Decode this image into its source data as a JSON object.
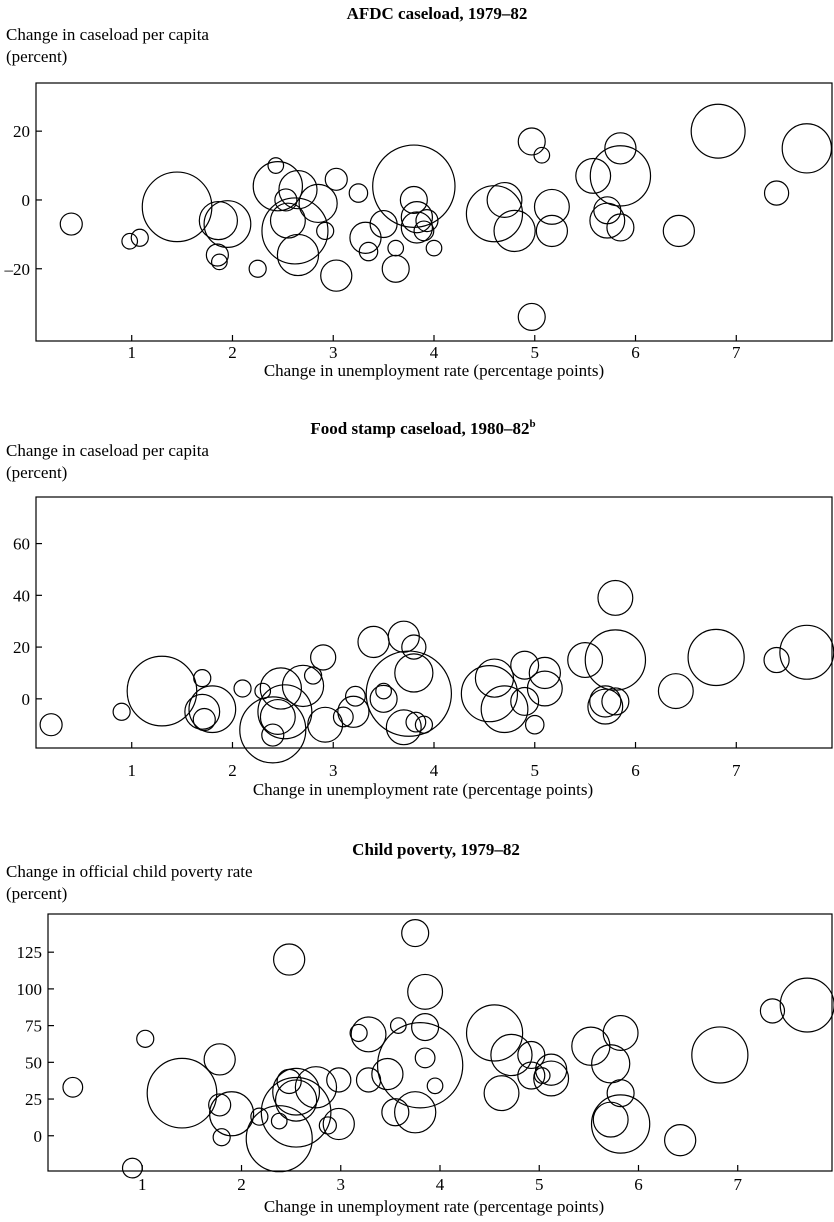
{
  "chart_data": [
    {
      "type": "scatter",
      "title": "AFDC caseload, 1979–82",
      "title_sup": "",
      "ylabel_line1": "Change in caseload per capita",
      "ylabel_line2": "(percent)",
      "xlabel": "Change in unemployment rate (percentage points)",
      "xlim": [
        0.05,
        7.95
      ],
      "ylim": [
        -41,
        34
      ],
      "xticks": [
        "1",
        "2",
        "3",
        "4",
        "5",
        "6",
        "7"
      ],
      "yticks": [
        "20",
        "0",
        "–20"
      ],
      "ytick_values": [
        20,
        0,
        -20
      ],
      "size_encoding": "bubble area",
      "points": [
        {
          "x": 0.4,
          "y": -7,
          "s": 1
        },
        {
          "x": 0.98,
          "y": -12,
          "s": 0.5
        },
        {
          "x": 1.08,
          "y": -11,
          "s": 0.6
        },
        {
          "x": 1.45,
          "y": -2,
          "s": 10
        },
        {
          "x": 1.86,
          "y": -6,
          "s": 3
        },
        {
          "x": 1.85,
          "y": -16,
          "s": 1
        },
        {
          "x": 1.87,
          "y": -18,
          "s": 0.5
        },
        {
          "x": 1.95,
          "y": -7,
          "s": 4.5
        },
        {
          "x": 2.25,
          "y": -20,
          "s": 0.6
        },
        {
          "x": 2.43,
          "y": 10,
          "s": 0.5
        },
        {
          "x": 2.45,
          "y": 4,
          "s": 5
        },
        {
          "x": 2.53,
          "y": 0,
          "s": 1
        },
        {
          "x": 2.55,
          "y": -6,
          "s": 2.5
        },
        {
          "x": 2.62,
          "y": -9,
          "s": 9
        },
        {
          "x": 2.65,
          "y": 3,
          "s": 3
        },
        {
          "x": 2.65,
          "y": -16,
          "s": 3.5
        },
        {
          "x": 2.85,
          "y": -1,
          "s": 3
        },
        {
          "x": 2.92,
          "y": -9,
          "s": 0.6
        },
        {
          "x": 3.03,
          "y": 6,
          "s": 1
        },
        {
          "x": 3.03,
          "y": -22,
          "s": 2
        },
        {
          "x": 3.25,
          "y": 2,
          "s": 0.7
        },
        {
          "x": 3.32,
          "y": -11,
          "s": 2
        },
        {
          "x": 3.35,
          "y": -15,
          "s": 0.7
        },
        {
          "x": 3.5,
          "y": -7,
          "s": 1.5
        },
        {
          "x": 3.62,
          "y": -20,
          "s": 1.5
        },
        {
          "x": 3.62,
          "y": -14,
          "s": 0.5
        },
        {
          "x": 3.8,
          "y": 4,
          "s": 14
        },
        {
          "x": 3.8,
          "y": 0,
          "s": 1.5
        },
        {
          "x": 3.83,
          "y": -5,
          "s": 2
        },
        {
          "x": 3.83,
          "y": -8,
          "s": 2
        },
        {
          "x": 3.9,
          "y": -9,
          "s": 0.8
        },
        {
          "x": 3.93,
          "y": -6,
          "s": 1
        },
        {
          "x": 4.0,
          "y": -14,
          "s": 0.5
        },
        {
          "x": 4.6,
          "y": -4,
          "s": 6.5
        },
        {
          "x": 4.7,
          "y": 0,
          "s": 2.5
        },
        {
          "x": 4.8,
          "y": -9,
          "s": 3.5
        },
        {
          "x": 4.97,
          "y": 17,
          "s": 1.5
        },
        {
          "x": 5.07,
          "y": 13,
          "s": 0.5
        },
        {
          "x": 5.17,
          "y": -2,
          "s": 2.5
        },
        {
          "x": 5.17,
          "y": -9,
          "s": 2
        },
        {
          "x": 4.97,
          "y": -34,
          "s": 1.5
        },
        {
          "x": 5.58,
          "y": 7,
          "s": 2.5
        },
        {
          "x": 5.72,
          "y": -3,
          "s": 1.5
        },
        {
          "x": 5.72,
          "y": -6,
          "s": 2.5
        },
        {
          "x": 5.85,
          "y": 15,
          "s": 2
        },
        {
          "x": 5.85,
          "y": -8,
          "s": 1.5
        },
        {
          "x": 5.85,
          "y": 7,
          "s": 7.5
        },
        {
          "x": 6.43,
          "y": -9,
          "s": 2
        },
        {
          "x": 6.82,
          "y": 20,
          "s": 6
        },
        {
          "x": 7.4,
          "y": 2,
          "s": 1.2
        },
        {
          "x": 7.7,
          "y": 15,
          "s": 5
        }
      ]
    },
    {
      "type": "scatter",
      "title": "Food stamp caseload, 1980–82",
      "title_sup": "b",
      "ylabel_line1": "Change in caseload per capita",
      "ylabel_line2": "(percent)",
      "xlabel": "Change in unemployment rate (percentage points)",
      "xlim": [
        0.05,
        7.95
      ],
      "ylim": [
        -19,
        78
      ],
      "xticks": [
        "1",
        "2",
        "3",
        "4",
        "5",
        "6",
        "7"
      ],
      "yticks": [
        "60",
        "40",
        "20",
        "0"
      ],
      "ytick_values": [
        60,
        40,
        20,
        0
      ],
      "size_encoding": "bubble area",
      "points": [
        {
          "x": 0.2,
          "y": -10,
          "s": 1
        },
        {
          "x": 0.9,
          "y": -5,
          "s": 0.6
        },
        {
          "x": 1.3,
          "y": 3,
          "s": 10
        },
        {
          "x": 1.7,
          "y": 8,
          "s": 0.6
        },
        {
          "x": 1.7,
          "y": -5,
          "s": 2.5
        },
        {
          "x": 1.72,
          "y": -8,
          "s": 1
        },
        {
          "x": 1.8,
          "y": -4,
          "s": 4.5
        },
        {
          "x": 2.1,
          "y": 4,
          "s": 0.6
        },
        {
          "x": 2.3,
          "y": 3,
          "s": 0.5
        },
        {
          "x": 2.4,
          "y": -12,
          "s": 9
        },
        {
          "x": 2.4,
          "y": -14,
          "s": 1
        },
        {
          "x": 2.45,
          "y": -7,
          "s": 2.5
        },
        {
          "x": 2.48,
          "y": 4,
          "s": 3.5
        },
        {
          "x": 2.52,
          "y": -5,
          "s": 6
        },
        {
          "x": 2.7,
          "y": 5,
          "s": 3.5
        },
        {
          "x": 2.8,
          "y": 9,
          "s": 0.6
        },
        {
          "x": 2.9,
          "y": 16,
          "s": 1.3
        },
        {
          "x": 2.92,
          "y": -10,
          "s": 2.5
        },
        {
          "x": 3.1,
          "y": -7,
          "s": 0.8
        },
        {
          "x": 3.2,
          "y": -5,
          "s": 2
        },
        {
          "x": 3.22,
          "y": 1,
          "s": 0.8
        },
        {
          "x": 3.4,
          "y": 22,
          "s": 2
        },
        {
          "x": 3.5,
          "y": 0,
          "s": 1.5
        },
        {
          "x": 3.5,
          "y": 3,
          "s": 0.5
        },
        {
          "x": 3.7,
          "y": 24,
          "s": 2
        },
        {
          "x": 3.7,
          "y": -11,
          "s": 2.5
        },
        {
          "x": 3.75,
          "y": 2,
          "s": 15
        },
        {
          "x": 3.8,
          "y": 20,
          "s": 1.2
        },
        {
          "x": 3.8,
          "y": 10,
          "s": 3
        },
        {
          "x": 3.82,
          "y": -9,
          "s": 0.8
        },
        {
          "x": 3.9,
          "y": -10,
          "s": 0.6
        },
        {
          "x": 4.55,
          "y": 2,
          "s": 6.5
        },
        {
          "x": 4.6,
          "y": 8,
          "s": 3
        },
        {
          "x": 4.7,
          "y": -4,
          "s": 4.5
        },
        {
          "x": 4.9,
          "y": 13,
          "s": 1.6
        },
        {
          "x": 4.9,
          "y": -1,
          "s": 1.6
        },
        {
          "x": 5.0,
          "y": -10,
          "s": 0.7
        },
        {
          "x": 5.1,
          "y": 10,
          "s": 2
        },
        {
          "x": 5.1,
          "y": 4,
          "s": 2.5
        },
        {
          "x": 5.5,
          "y": 15,
          "s": 2.5
        },
        {
          "x": 5.7,
          "y": -1,
          "s": 2
        },
        {
          "x": 5.7,
          "y": -3,
          "s": 2.5
        },
        {
          "x": 5.8,
          "y": 39,
          "s": 2.5
        },
        {
          "x": 5.8,
          "y": 15,
          "s": 7.5
        },
        {
          "x": 5.8,
          "y": -1,
          "s": 1.5
        },
        {
          "x": 6.4,
          "y": 3,
          "s": 2.5
        },
        {
          "x": 6.8,
          "y": 16,
          "s": 6.5
        },
        {
          "x": 7.4,
          "y": 15,
          "s": 1.3
        },
        {
          "x": 7.7,
          "y": 18,
          "s": 6
        }
      ]
    },
    {
      "type": "scatter",
      "title": "Child poverty, 1979–82",
      "title_sup": "",
      "ylabel_line1": "Change in official child poverty rate",
      "ylabel_line2": "(percent)",
      "xlabel": "Change in unemployment rate (percentage points)",
      "xlim": [
        0.05,
        7.95
      ],
      "ylim": [
        -24,
        151
      ],
      "xticks": [
        "1",
        "2",
        "3",
        "4",
        "5",
        "6",
        "7"
      ],
      "yticks": [
        "125",
        "100",
        "75",
        "50",
        "25",
        "0"
      ],
      "ytick_values": [
        125,
        100,
        75,
        50,
        25,
        0
      ],
      "size_encoding": "bubble area",
      "points": [
        {
          "x": 0.3,
          "y": 33,
          "s": 0.8
        },
        {
          "x": 0.9,
          "y": -22,
          "s": 0.8
        },
        {
          "x": 1.03,
          "y": 66,
          "s": 0.6
        },
        {
          "x": 1.4,
          "y": 29,
          "s": 10
        },
        {
          "x": 1.78,
          "y": 52,
          "s": 2
        },
        {
          "x": 1.78,
          "y": 21,
          "s": 1
        },
        {
          "x": 1.8,
          "y": -1,
          "s": 0.6
        },
        {
          "x": 1.9,
          "y": 15,
          "s": 4
        },
        {
          "x": 2.18,
          "y": 13,
          "s": 0.6
        },
        {
          "x": 2.38,
          "y": -2,
          "s": 9
        },
        {
          "x": 2.38,
          "y": 10,
          "s": 0.5
        },
        {
          "x": 2.48,
          "y": 120,
          "s": 2
        },
        {
          "x": 2.48,
          "y": 37,
          "s": 1.2
        },
        {
          "x": 2.55,
          "y": 30,
          "s": 4.5
        },
        {
          "x": 2.55,
          "y": 24,
          "s": 3.5
        },
        {
          "x": 2.55,
          "y": 16,
          "s": 10
        },
        {
          "x": 2.75,
          "y": 33,
          "s": 3.5
        },
        {
          "x": 2.87,
          "y": 7,
          "s": 0.6
        },
        {
          "x": 2.98,
          "y": 38,
          "s": 1.2
        },
        {
          "x": 2.98,
          "y": 8,
          "s": 2
        },
        {
          "x": 3.18,
          "y": 70,
          "s": 0.6
        },
        {
          "x": 3.28,
          "y": 69,
          "s": 2.5
        },
        {
          "x": 3.28,
          "y": 38,
          "s": 1.2
        },
        {
          "x": 3.47,
          "y": 42,
          "s": 2
        },
        {
          "x": 3.55,
          "y": 16,
          "s": 1.5
        },
        {
          "x": 3.58,
          "y": 75,
          "s": 0.5
        },
        {
          "x": 3.75,
          "y": 138,
          "s": 1.5
        },
        {
          "x": 3.75,
          "y": 16,
          "s": 3.5
        },
        {
          "x": 3.8,
          "y": 48,
          "s": 15
        },
        {
          "x": 3.85,
          "y": 98,
          "s": 2.5
        },
        {
          "x": 3.85,
          "y": 74,
          "s": 1.5
        },
        {
          "x": 3.85,
          "y": 53,
          "s": 0.8
        },
        {
          "x": 3.95,
          "y": 34,
          "s": 0.5
        },
        {
          "x": 4.55,
          "y": 70,
          "s": 6.5
        },
        {
          "x": 4.62,
          "y": 29,
          "s": 2.5
        },
        {
          "x": 4.72,
          "y": 55,
          "s": 3.5
        },
        {
          "x": 4.92,
          "y": 55,
          "s": 1.5
        },
        {
          "x": 4.92,
          "y": 41,
          "s": 1.5
        },
        {
          "x": 5.03,
          "y": 41,
          "s": 0.5
        },
        {
          "x": 5.12,
          "y": 45,
          "s": 2
        },
        {
          "x": 5.12,
          "y": 39,
          "s": 2.5
        },
        {
          "x": 5.52,
          "y": 61,
          "s": 3
        },
        {
          "x": 5.72,
          "y": 49,
          "s": 3
        },
        {
          "x": 5.72,
          "y": 11,
          "s": 2.5
        },
        {
          "x": 5.82,
          "y": 70,
          "s": 2.5
        },
        {
          "x": 5.82,
          "y": 29,
          "s": 1.5
        },
        {
          "x": 5.82,
          "y": 8,
          "s": 7
        },
        {
          "x": 6.42,
          "y": -3,
          "s": 2
        },
        {
          "x": 6.82,
          "y": 55,
          "s": 6.5
        },
        {
          "x": 7.35,
          "y": 85,
          "s": 1.2
        },
        {
          "x": 7.7,
          "y": 89,
          "s": 6
        }
      ]
    }
  ]
}
